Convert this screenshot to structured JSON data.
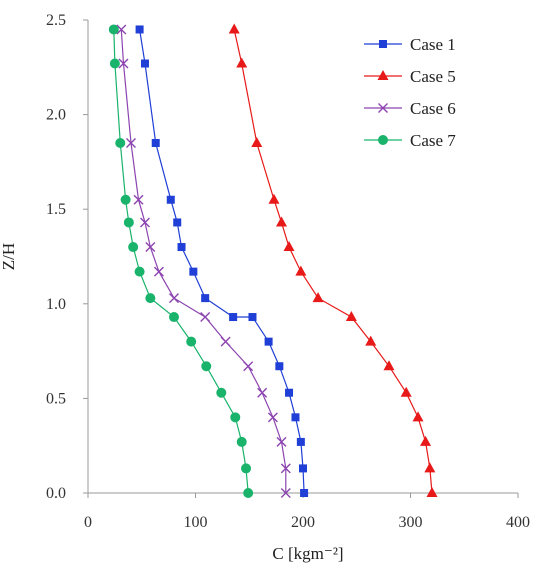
{
  "chart_data": {
    "type": "line",
    "xlabel": "C [kgm⁻²]",
    "ylabel": "Z/H",
    "xlim": [
      0,
      400
    ],
    "ylim": [
      0,
      2.5
    ],
    "xticks": [
      "0",
      "100",
      "200",
      "300",
      "400"
    ],
    "yticks": [
      "0.0",
      "0.5",
      "1.0",
      "1.5",
      "2.0",
      "2.5"
    ],
    "grid": false,
    "legend_position": "top-right",
    "series": [
      {
        "name": "Case 1",
        "color": "#1f3fd6",
        "marker": "square",
        "points": [
          [
            201,
            0.0
          ],
          [
            200,
            0.13
          ],
          [
            198,
            0.27
          ],
          [
            193,
            0.4
          ],
          [
            187,
            0.53
          ],
          [
            178,
            0.67
          ],
          [
            168,
            0.8
          ],
          [
            153,
            0.93
          ],
          [
            135,
            0.93
          ],
          [
            109,
            1.03
          ],
          [
            98,
            1.17
          ],
          [
            87,
            1.3
          ],
          [
            83,
            1.43
          ],
          [
            77,
            1.55
          ],
          [
            63,
            1.85
          ],
          [
            53,
            2.27
          ],
          [
            48,
            2.45
          ]
        ]
      },
      {
        "name": "Case 5",
        "color": "#e81919",
        "marker": "triangle",
        "points": [
          [
            320,
            0.0
          ],
          [
            318,
            0.13
          ],
          [
            314,
            0.27
          ],
          [
            307,
            0.4
          ],
          [
            296,
            0.53
          ],
          [
            280,
            0.67
          ],
          [
            263,
            0.8
          ],
          [
            245,
            0.93
          ],
          [
            214,
            1.03
          ],
          [
            198,
            1.17
          ],
          [
            187,
            1.3
          ],
          [
            180,
            1.43
          ],
          [
            173,
            1.55
          ],
          [
            157,
            1.85
          ],
          [
            143,
            2.27
          ],
          [
            136,
            2.45
          ]
        ]
      },
      {
        "name": "Case 6",
        "color": "#8c44b0",
        "marker": "x",
        "points": [
          [
            184,
            0.0
          ],
          [
            184,
            0.13
          ],
          [
            180,
            0.27
          ],
          [
            172,
            0.4
          ],
          [
            162,
            0.53
          ],
          [
            149,
            0.67
          ],
          [
            128,
            0.8
          ],
          [
            109,
            0.93
          ],
          [
            80,
            1.03
          ],
          [
            66,
            1.17
          ],
          [
            58,
            1.3
          ],
          [
            53,
            1.43
          ],
          [
            47,
            1.55
          ],
          [
            40,
            1.85
          ],
          [
            33,
            2.27
          ],
          [
            31,
            2.45
          ]
        ]
      },
      {
        "name": "Case 7",
        "color": "#19b36b",
        "marker": "circle",
        "points": [
          [
            149,
            0.0
          ],
          [
            147,
            0.13
          ],
          [
            143,
            0.27
          ],
          [
            137,
            0.4
          ],
          [
            124,
            0.53
          ],
          [
            110,
            0.67
          ],
          [
            96,
            0.8
          ],
          [
            80,
            0.93
          ],
          [
            58,
            1.03
          ],
          [
            48,
            1.17
          ],
          [
            42,
            1.3
          ],
          [
            38,
            1.43
          ],
          [
            35,
            1.55
          ],
          [
            30,
            1.85
          ],
          [
            25,
            2.27
          ],
          [
            24,
            2.45
          ]
        ]
      }
    ]
  }
}
